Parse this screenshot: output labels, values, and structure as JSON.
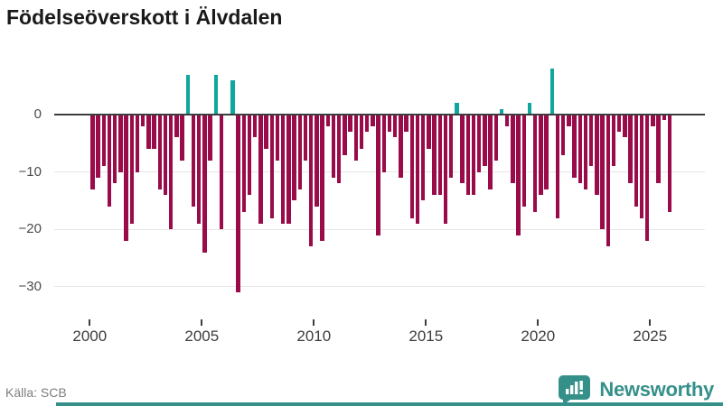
{
  "title": "Födelseöverskott i Älvdalen",
  "source": "Källa: SCB",
  "branding": {
    "name": "Newsworthy",
    "logo_icon": "speech-bubble-bar-chart"
  },
  "colors": {
    "negative_bar": "#9a0b4a",
    "positive_bar": "#0ea79b",
    "brand_teal": "#35908a",
    "axis": "#3d3d3d",
    "gridline": "#e6e6e6",
    "tick_label": "#3d3d3d",
    "source_text": "#7e7e7e"
  },
  "chart_data": {
    "type": "bar",
    "title": "Födelseöverskott i Älvdalen",
    "frequency": "quarterly",
    "x_start_year": 2000,
    "x_ticks": [
      2000,
      2005,
      2010,
      2015,
      2020,
      2025
    ],
    "y_ticks": [
      0,
      -10,
      -20,
      -30
    ],
    "ylim": [
      -32,
      9
    ],
    "grid": "horizontal-only",
    "legend": "none",
    "series_note": "values are quarterly from 2000Q1 to 2025Q4; positive values drawn teal, negative magenta, zero = no bar",
    "values": [
      -13,
      -11,
      -9,
      -16,
      -12,
      -10,
      -22,
      -19,
      -10,
      -2,
      -6,
      -6,
      -13,
      -14,
      -20,
      -4,
      -8,
      7,
      -16,
      -19,
      -24,
      -8,
      7,
      -20,
      0,
      6,
      -31,
      -17,
      -14,
      -4,
      -19,
      -6,
      -18,
      -8,
      -19,
      -19,
      -15,
      -13,
      -8,
      -23,
      -16,
      -22,
      -2,
      -11,
      -12,
      -7,
      -3,
      -8,
      -6,
      -3,
      -2,
      -21,
      -10,
      -3,
      -4,
      -11,
      -3,
      -18,
      -19,
      -15,
      -6,
      -14,
      -14,
      -19,
      -11,
      2,
      -12,
      -14,
      -14,
      -10,
      -9,
      -13,
      -8,
      1,
      -2,
      -12,
      -21,
      -16,
      2,
      -17,
      -14,
      -13,
      8,
      -18,
      -7,
      -2,
      -11,
      -12,
      -13,
      -9,
      -14,
      -20,
      -23,
      -9,
      -3,
      -4,
      -12,
      -16,
      -18,
      -22,
      -2,
      -12,
      -1,
      -17
    ]
  }
}
